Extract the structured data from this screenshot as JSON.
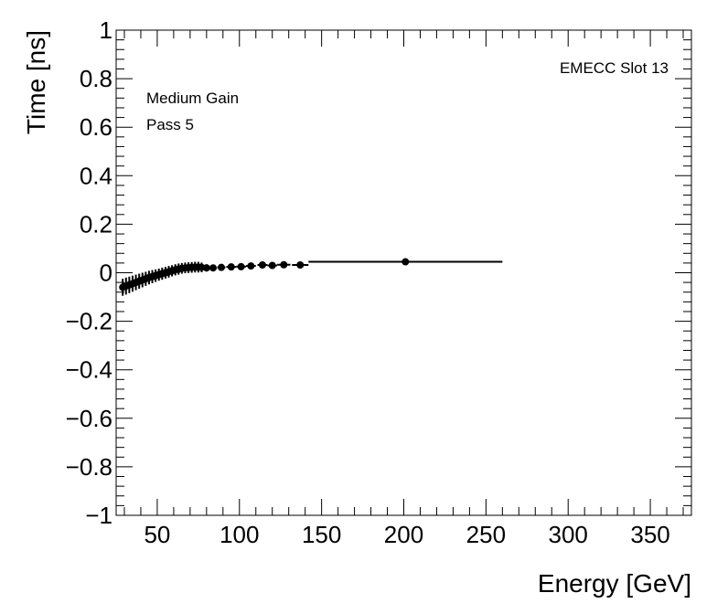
{
  "chart_data": {
    "type": "scatter",
    "title": "",
    "xlabel": "Energy [GeV]",
    "ylabel": "Time [ns]",
    "xlim": [
      25,
      375
    ],
    "ylim": [
      -1,
      1
    ],
    "x_ticks": [
      50,
      100,
      150,
      200,
      250,
      300,
      350
    ],
    "x_tick_labels": [
      "50",
      "100",
      "150",
      "200",
      "250",
      "300",
      "350"
    ],
    "y_ticks": [
      -1,
      -0.8,
      -0.6,
      -0.4,
      -0.2,
      0,
      0.2,
      0.4,
      0.6,
      0.8,
      1
    ],
    "y_tick_labels": [
      "−1",
      "−0.8",
      "−0.6",
      "−0.4",
      "−0.2",
      "0",
      "0.2",
      "0.4",
      "0.6",
      "0.8",
      "1"
    ],
    "grid": false,
    "annotations": {
      "slot": "EMECC Slot 13",
      "gain": "Medium Gain",
      "pass": "Pass 5"
    },
    "series": [
      {
        "points": [
          {
            "x": 29,
            "y": -0.06,
            "xerr": 1.0,
            "yerr": 0.035
          },
          {
            "x": 31,
            "y": -0.055,
            "xerr": 1.0,
            "yerr": 0.035
          },
          {
            "x": 33,
            "y": -0.05,
            "xerr": 1.0,
            "yerr": 0.034
          },
          {
            "x": 35,
            "y": -0.045,
            "xerr": 1.0,
            "yerr": 0.033
          },
          {
            "x": 37,
            "y": -0.04,
            "xerr": 1.0,
            "yerr": 0.032
          },
          {
            "x": 39,
            "y": -0.035,
            "xerr": 1.0,
            "yerr": 0.031
          },
          {
            "x": 41,
            "y": -0.03,
            "xerr": 1.0,
            "yerr": 0.03
          },
          {
            "x": 43,
            "y": -0.025,
            "xerr": 1.0,
            "yerr": 0.029
          },
          {
            "x": 45,
            "y": -0.02,
            "xerr": 1.0,
            "yerr": 0.028
          },
          {
            "x": 47,
            "y": -0.016,
            "xerr": 1.0,
            "yerr": 0.027
          },
          {
            "x": 49,
            "y": -0.012,
            "xerr": 1.0,
            "yerr": 0.026
          },
          {
            "x": 51,
            "y": -0.008,
            "xerr": 1.0,
            "yerr": 0.025
          },
          {
            "x": 53,
            "y": -0.004,
            "xerr": 1.0,
            "yerr": 0.025
          },
          {
            "x": 55,
            "y": 0.0,
            "xerr": 1.0,
            "yerr": 0.024
          },
          {
            "x": 57,
            "y": 0.004,
            "xerr": 1.0,
            "yerr": 0.024
          },
          {
            "x": 59,
            "y": 0.008,
            "xerr": 1.0,
            "yerr": 0.023
          },
          {
            "x": 61,
            "y": 0.012,
            "xerr": 1.0,
            "yerr": 0.023
          },
          {
            "x": 63,
            "y": 0.015,
            "xerr": 1.0,
            "yerr": 0.023
          },
          {
            "x": 65,
            "y": 0.018,
            "xerr": 1.0,
            "yerr": 0.022
          },
          {
            "x": 67,
            "y": 0.02,
            "xerr": 1.0,
            "yerr": 0.022
          },
          {
            "x": 69,
            "y": 0.021,
            "xerr": 1.0,
            "yerr": 0.022
          },
          {
            "x": 71,
            "y": 0.022,
            "xerr": 1.0,
            "yerr": 0.022
          },
          {
            "x": 73,
            "y": 0.023,
            "xerr": 1.0,
            "yerr": 0.022
          },
          {
            "x": 75,
            "y": 0.023,
            "xerr": 1.0,
            "yerr": 0.022
          },
          {
            "x": 77,
            "y": 0.022,
            "xerr": 1.0,
            "yerr": 0.02
          },
          {
            "x": 80,
            "y": 0.02,
            "xerr": 1.5,
            "yerr": 0.015
          },
          {
            "x": 84,
            "y": 0.02,
            "xerr": 2.0,
            "yerr": 0.012
          },
          {
            "x": 89,
            "y": 0.022,
            "xerr": 2.5,
            "yerr": 0.01
          },
          {
            "x": 95,
            "y": 0.024,
            "xerr": 3.0,
            "yerr": 0.008
          },
          {
            "x": 101,
            "y": 0.025,
            "xerr": 3.0,
            "yerr": 0.007
          },
          {
            "x": 107,
            "y": 0.028,
            "xerr": 3.0,
            "yerr": 0.007
          },
          {
            "x": 114,
            "y": 0.032,
            "xerr": 3.0,
            "yerr": 0.006
          },
          {
            "x": 120,
            "y": 0.03,
            "xerr": 3.0,
            "yerr": 0.006
          },
          {
            "x": 127,
            "y": 0.033,
            "xerr": 4.0,
            "yerr": 0.006
          },
          {
            "x": 137,
            "y": 0.032,
            "xerr": 5.0,
            "yerr": 0.006
          },
          {
            "x": 201,
            "y": 0.045,
            "xerr": 59.0,
            "yerr": 0.006
          }
        ]
      }
    ]
  }
}
